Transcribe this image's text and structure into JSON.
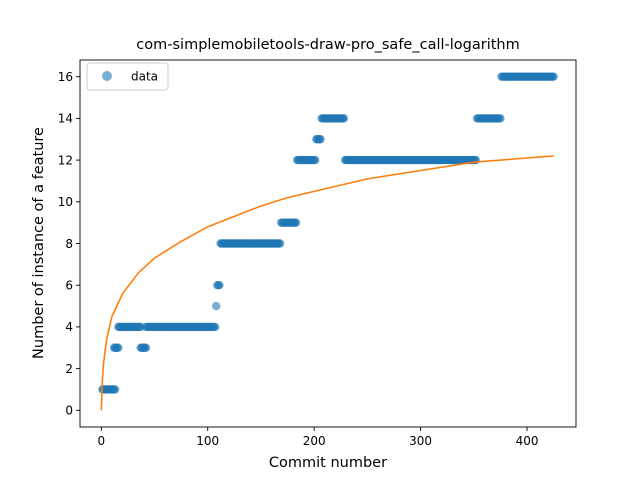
{
  "chart_data": {
    "type": "scatter",
    "title": "com-simplemobiletools-draw-pro_safe_call-logarithm",
    "xlabel": "Commit number",
    "ylabel": "Number of instance of a feature",
    "xlim": [
      -20,
      446
    ],
    "ylim": [
      -0.8,
      16.8
    ],
    "xticks": [
      0,
      100,
      200,
      300,
      400
    ],
    "yticks": [
      0,
      2,
      4,
      6,
      8,
      10,
      12,
      14,
      16
    ],
    "legend": {
      "position": "top-left",
      "entries": [
        "data"
      ]
    },
    "grid": false,
    "colors": {
      "data": "#1f77b4",
      "fit": "#ff7f0e"
    },
    "series": [
      {
        "name": "data",
        "kind": "scatter",
        "segments": [
          {
            "x_start": 1,
            "x_end": 13,
            "y": 1
          },
          {
            "x_start": 12,
            "x_end": 16,
            "y": 3
          },
          {
            "x_start": 16,
            "x_end": 37,
            "y": 4
          },
          {
            "x_start": 37,
            "x_end": 42,
            "y": 3
          },
          {
            "x_start": 42,
            "x_end": 107,
            "y": 4
          },
          {
            "x_start": 108,
            "x_end": 108,
            "y": 5
          },
          {
            "x_start": 109,
            "x_end": 111,
            "y": 6
          },
          {
            "x_start": 112,
            "x_end": 168,
            "y": 8
          },
          {
            "x_start": 169,
            "x_end": 183,
            "y": 9
          },
          {
            "x_start": 184,
            "x_end": 201,
            "y": 12
          },
          {
            "x_start": 202,
            "x_end": 206,
            "y": 13
          },
          {
            "x_start": 207,
            "x_end": 228,
            "y": 14
          },
          {
            "x_start": 229,
            "x_end": 352,
            "y": 12
          },
          {
            "x_start": 353,
            "x_end": 375,
            "y": 14
          },
          {
            "x_start": 376,
            "x_end": 425,
            "y": 16
          }
        ]
      },
      {
        "kind": "line",
        "fit": "logarithmic",
        "points": [
          [
            0,
            0
          ],
          [
            1,
            1.4
          ],
          [
            2,
            2.2
          ],
          [
            5,
            3.4
          ],
          [
            10,
            4.5
          ],
          [
            20,
            5.6
          ],
          [
            35,
            6.6
          ],
          [
            50,
            7.3
          ],
          [
            75,
            8.1
          ],
          [
            100,
            8.8
          ],
          [
            125,
            9.3
          ],
          [
            150,
            9.8
          ],
          [
            175,
            10.2
          ],
          [
            200,
            10.5
          ],
          [
            250,
            11.1
          ],
          [
            300,
            11.5
          ],
          [
            350,
            11.9
          ],
          [
            400,
            12.1
          ],
          [
            425,
            12.2
          ]
        ]
      }
    ]
  }
}
